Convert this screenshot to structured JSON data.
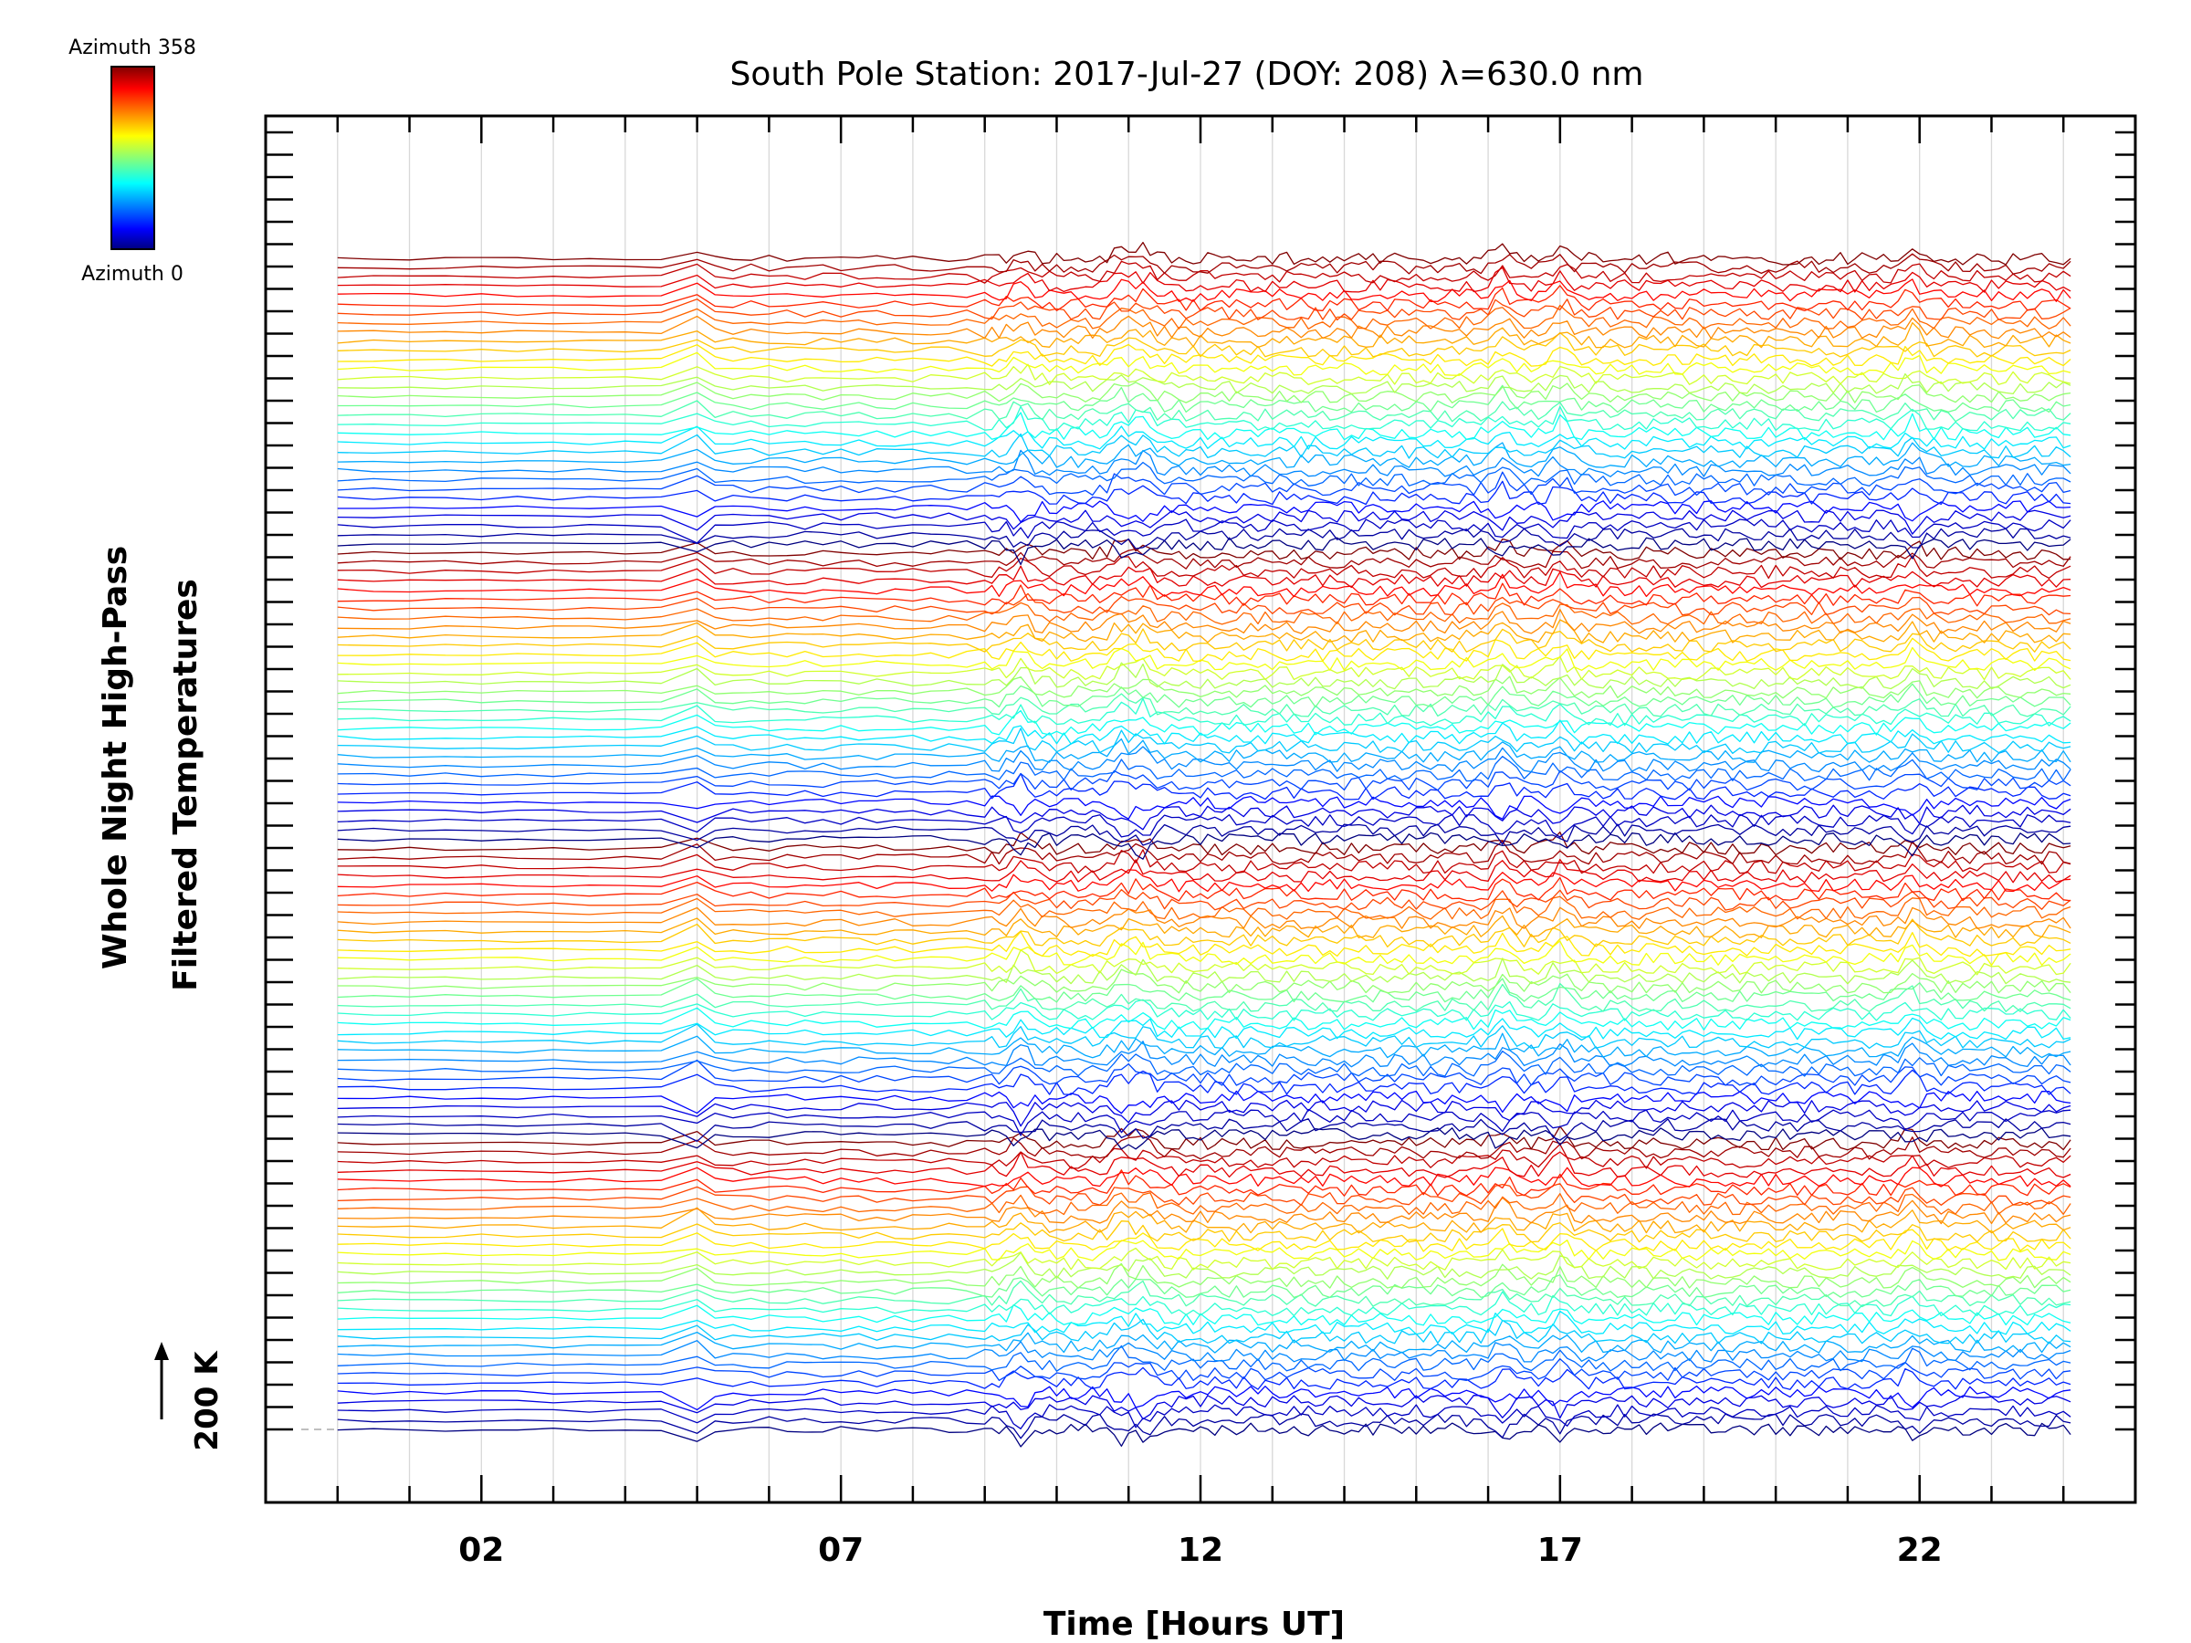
{
  "chart_data": {
    "type": "line",
    "title": "South Pole Station: 2017-Jul-27 (DOY: 208) λ=630.0 nm",
    "xlabel": "Time [Hours UT]",
    "ylabel_line1": "Whole Night High-Pass",
    "ylabel_line2": "Filtered Temperatures",
    "xlim": [
      -1,
      25
    ],
    "x_ticks": [
      2,
      7,
      12,
      17,
      22
    ],
    "x_tick_labels": [
      "02",
      "07",
      "12",
      "17",
      "22"
    ],
    "data_start_hour": 0,
    "data_end_hour": 24.1,
    "scale_bar": {
      "label": "200 K",
      "value_k": 200
    },
    "colorbar": {
      "top_label": "Azimuth 358",
      "bottom_label": "Azimuth 0",
      "min": 0,
      "max": 358
    },
    "n_traces": 128,
    "trace_spacing_k": 50,
    "event_hours": [
      5.0,
      9.5,
      10.9,
      11.2,
      16.2,
      17.0,
      21.9
    ],
    "grid": true
  }
}
